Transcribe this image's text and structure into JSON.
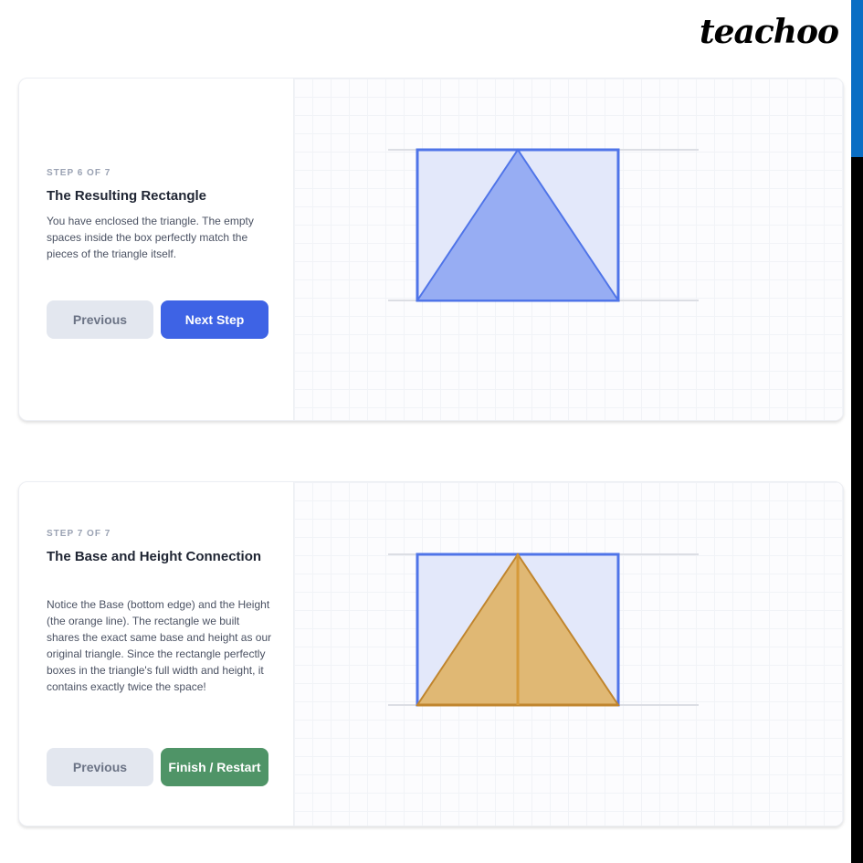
{
  "brand": {
    "logo": "teachoo"
  },
  "cards": [
    {
      "step": "STEP 6 OF 7",
      "title": "The Resulting Rectangle",
      "description": "You have enclosed the triangle. The empty spaces inside the box perfectly match the pieces of the triangle itself.",
      "prev_label": "Previous",
      "next_label": "Next Step"
    },
    {
      "step": "STEP 7 OF 7",
      "title": "The Base and Height Connection",
      "description": "Notice the Base (bottom edge) and the Height (the orange line). The rectangle we built shares the exact same base and height as our original triangle. Since the rectangle perfectly boxes in the triangle's full width and height, it contains exactly twice the space!",
      "prev_label": "Previous",
      "next_label": "Finish / Restart"
    }
  ],
  "colors": {
    "primary": "#3e63e5",
    "success": "#4f9467",
    "triangle_blue": "#97adf3",
    "triangle_orange": "#e0b874",
    "rect_stroke": "#4f74e8"
  }
}
